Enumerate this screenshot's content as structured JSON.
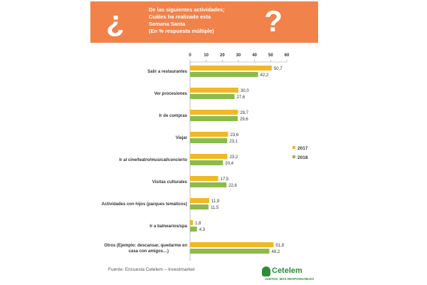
{
  "header": {
    "question_open": "¿",
    "question_close": "?",
    "title_lines": [
      "De las siguientes actividades;",
      "Cuáles ha realizado esta",
      "Semana Santa",
      "(En % respuesta múltiple)"
    ]
  },
  "colors": {
    "header_bg": "#f0824a",
    "series_2017": "#f2b824",
    "series_2018": "#8dbb4a"
  },
  "chart_data": {
    "type": "bar",
    "orientation": "horizontal",
    "categories": [
      "Salir a restaurantes",
      "Ver procesiones",
      "Ir de compras",
      "Viajar",
      "Ir al cine/teatro/musical/concierto",
      "Visitas culturales",
      "Actividades con hijos (parques temáticos)",
      "Ir a balnearios/spa",
      "Otros (Ejemplo: descansar, quedarme en casa con amigos…)"
    ],
    "series": [
      {
        "name": "2017",
        "values": [
          50.7,
          30.0,
          29.7,
          23.6,
          23.2,
          17.5,
          11.9,
          1.8,
          51.8
        ],
        "labels": [
          "50,7",
          "30,0",
          "29,7",
          "23,6",
          "23,2",
          "17,5",
          "11,9",
          "1,8",
          "51,8"
        ]
      },
      {
        "name": "2018",
        "values": [
          42.2,
          27.6,
          29.6,
          23.1,
          20.4,
          22.6,
          11.5,
          4.3,
          49.2
        ],
        "labels": [
          "42,2",
          "27,6",
          "29,6",
          "23,1",
          "20,4",
          "22,6",
          "11,5",
          "4,3",
          "49,2"
        ]
      }
    ],
    "xlim": [
      0,
      60
    ],
    "xticks": [
      0,
      10,
      20,
      30,
      40,
      50,
      60
    ],
    "axis_position": "top",
    "legend_position": "right",
    "grid": false
  },
  "footer": {
    "source": "Fuente: Encuesta Cetelem – Investmarket",
    "logo_name": "Cetelem",
    "logo_tagline": "JUNTOS, MÁS RESPONSABLES"
  }
}
